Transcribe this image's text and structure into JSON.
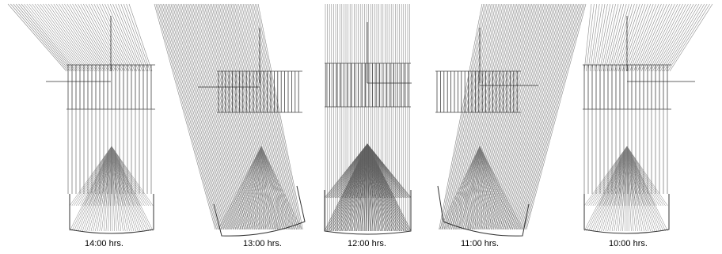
{
  "figure": {
    "panels": [
      {
        "id": "p1400",
        "label": "14:00 hrs.",
        "tilt": "left"
      },
      {
        "id": "p1300",
        "label": "13:00 hrs.",
        "tilt": "left-strong"
      },
      {
        "id": "p1200",
        "label": "12:00 hrs.",
        "tilt": "none"
      },
      {
        "id": "p1100",
        "label": "11:00 hrs.",
        "tilt": "right-strong"
      },
      {
        "id": "p1000",
        "label": "10:00 hrs.",
        "tilt": "right"
      }
    ],
    "colors": {
      "ray": "#707070",
      "dense": "#5a5a5a",
      "frame": "#333333",
      "caption": "#000000"
    }
  }
}
